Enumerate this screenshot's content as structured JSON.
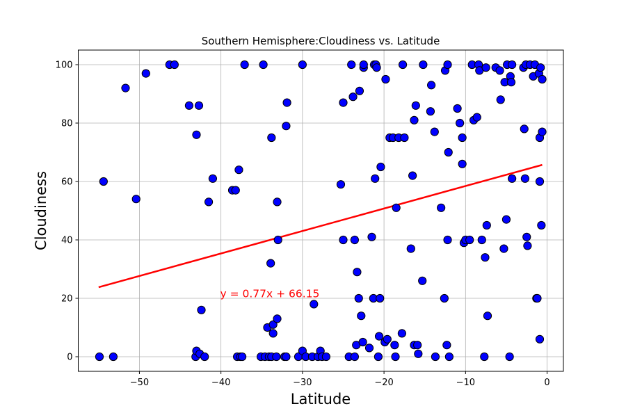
{
  "chart_data": {
    "type": "scatter",
    "title": "Southern Hemisphere:Cloudiness vs. Latitude",
    "xlabel": "Latitude",
    "ylabel": "Cloudiness",
    "xlim": [
      -57.5,
      2
    ],
    "ylim": [
      -5,
      105
    ],
    "xticks": [
      -50,
      -40,
      -30,
      -20,
      -10,
      0
    ],
    "yticks": [
      0,
      20,
      40,
      60,
      80,
      100
    ],
    "grid": true,
    "marker_color": "#0000ff",
    "marker_edge_color": "#000000",
    "regression": {
      "slope": 0.77,
      "intercept": 66.15,
      "x_range": [
        -55,
        -0.6
      ],
      "color": "#ff0000",
      "equation_label": "y = 0.77x + 66.15",
      "label_position": [
        -40.1,
        20.3
      ]
    },
    "points": [
      [
        -54.9,
        0
      ],
      [
        -54.4,
        60
      ],
      [
        -53.2,
        0
      ],
      [
        -51.7,
        92
      ],
      [
        -50.4,
        54
      ],
      [
        -49.2,
        97
      ],
      [
        -46.3,
        100
      ],
      [
        -45.7,
        100
      ],
      [
        -43.9,
        86
      ],
      [
        -43.1,
        0
      ],
      [
        -43.0,
        76
      ],
      [
        -43.0,
        2
      ],
      [
        -42.7,
        86
      ],
      [
        -42.6,
        1
      ],
      [
        -42.4,
        16
      ],
      [
        -42.0,
        0
      ],
      [
        -41.5,
        53
      ],
      [
        -41.0,
        61
      ],
      [
        -38.6,
        57
      ],
      [
        -38.2,
        57
      ],
      [
        -38.0,
        0
      ],
      [
        -37.8,
        64
      ],
      [
        -37.6,
        0
      ],
      [
        -37.4,
        0
      ],
      [
        -37.1,
        100
      ],
      [
        -35.1,
        0
      ],
      [
        -34.8,
        100
      ],
      [
        -34.6,
        0
      ],
      [
        -34.3,
        10
      ],
      [
        -34.1,
        0
      ],
      [
        -33.9,
        32
      ],
      [
        -33.8,
        75
      ],
      [
        -33.8,
        0
      ],
      [
        -33.6,
        8
      ],
      [
        -33.6,
        11
      ],
      [
        -33.2,
        0
      ],
      [
        -33.1,
        13
      ],
      [
        -33.1,
        53
      ],
      [
        -33.0,
        40
      ],
      [
        -32.2,
        0
      ],
      [
        -32.0,
        0
      ],
      [
        -32.0,
        79
      ],
      [
        -31.9,
        87
      ],
      [
        -30.5,
        0
      ],
      [
        -30.0,
        2
      ],
      [
        -30.0,
        100
      ],
      [
        -29.6,
        0
      ],
      [
        -28.8,
        0
      ],
      [
        -28.6,
        18
      ],
      [
        -28.1,
        0
      ],
      [
        -27.8,
        2
      ],
      [
        -27.6,
        0
      ],
      [
        -27.1,
        0
      ],
      [
        -25.3,
        59
      ],
      [
        -25.0,
        40
      ],
      [
        -25.0,
        87
      ],
      [
        -24.3,
        0
      ],
      [
        -24.0,
        100
      ],
      [
        -23.8,
        89
      ],
      [
        -23.6,
        0
      ],
      [
        -23.6,
        40
      ],
      [
        -23.4,
        4
      ],
      [
        -23.3,
        29
      ],
      [
        -23.1,
        20
      ],
      [
        -23.0,
        91
      ],
      [
        -22.8,
        14
      ],
      [
        -22.6,
        5
      ],
      [
        -22.5,
        99
      ],
      [
        -22.5,
        100
      ],
      [
        -21.8,
        3
      ],
      [
        -21.5,
        41
      ],
      [
        -21.3,
        20
      ],
      [
        -21.2,
        100
      ],
      [
        -21.1,
        61
      ],
      [
        -21.0,
        100
      ],
      [
        -20.9,
        99
      ],
      [
        -20.7,
        0
      ],
      [
        -20.6,
        7
      ],
      [
        -20.5,
        20
      ],
      [
        -20.4,
        65
      ],
      [
        -19.9,
        5
      ],
      [
        -19.8,
        95
      ],
      [
        -19.6,
        6
      ],
      [
        -19.3,
        75
      ],
      [
        -18.9,
        75
      ],
      [
        -18.7,
        4
      ],
      [
        -18.6,
        0
      ],
      [
        -18.5,
        51
      ],
      [
        -18.2,
        75
      ],
      [
        -17.8,
        8
      ],
      [
        -17.7,
        100
      ],
      [
        -17.5,
        75
      ],
      [
        -16.7,
        37
      ],
      [
        -16.5,
        62
      ],
      [
        -16.3,
        4
      ],
      [
        -16.3,
        81
      ],
      [
        -16.1,
        86
      ],
      [
        -15.9,
        4
      ],
      [
        -15.8,
        1
      ],
      [
        -15.3,
        26
      ],
      [
        -15.2,
        100
      ],
      [
        -14.3,
        84
      ],
      [
        -14.2,
        93
      ],
      [
        -13.8,
        77
      ],
      [
        -13.7,
        0
      ],
      [
        -13.0,
        51
      ],
      [
        -12.6,
        20
      ],
      [
        -12.5,
        98
      ],
      [
        -12.3,
        4
      ],
      [
        -12.2,
        40
      ],
      [
        -12.2,
        100
      ],
      [
        -12.1,
        70
      ],
      [
        -12.0,
        0
      ],
      [
        -11.0,
        85
      ],
      [
        -10.7,
        80
      ],
      [
        -10.4,
        75
      ],
      [
        -10.4,
        66
      ],
      [
        -10.2,
        39
      ],
      [
        -10.0,
        40
      ],
      [
        -9.5,
        40
      ],
      [
        -9.2,
        100
      ],
      [
        -9.0,
        81
      ],
      [
        -8.6,
        82
      ],
      [
        -8.4,
        100
      ],
      [
        -8.3,
        98
      ],
      [
        -8.0,
        40
      ],
      [
        -7.7,
        0
      ],
      [
        -7.6,
        34
      ],
      [
        -7.5,
        99
      ],
      [
        -7.4,
        45
      ],
      [
        -7.3,
        14
      ],
      [
        -6.3,
        99
      ],
      [
        -5.8,
        98
      ],
      [
        -5.7,
        88
      ],
      [
        -5.3,
        37
      ],
      [
        -5.2,
        94
      ],
      [
        -5.0,
        47
      ],
      [
        -4.9,
        100
      ],
      [
        -4.6,
        0
      ],
      [
        -4.5,
        96
      ],
      [
        -4.4,
        94
      ],
      [
        -4.3,
        61
      ],
      [
        -4.3,
        100
      ],
      [
        -2.9,
        99
      ],
      [
        -2.8,
        78
      ],
      [
        -2.7,
        61
      ],
      [
        -2.6,
        100
      ],
      [
        -2.5,
        41
      ],
      [
        -2.4,
        38
      ],
      [
        -2.1,
        100
      ],
      [
        -1.7,
        96
      ],
      [
        -1.5,
        100
      ],
      [
        -1.3,
        20
      ],
      [
        -1.2,
        20
      ],
      [
        -1.0,
        97
      ],
      [
        -0.9,
        75
      ],
      [
        -0.9,
        60
      ],
      [
        -0.9,
        6
      ],
      [
        -0.8,
        99
      ],
      [
        -0.7,
        45
      ],
      [
        -0.6,
        77
      ],
      [
        -0.6,
        95
      ]
    ]
  }
}
